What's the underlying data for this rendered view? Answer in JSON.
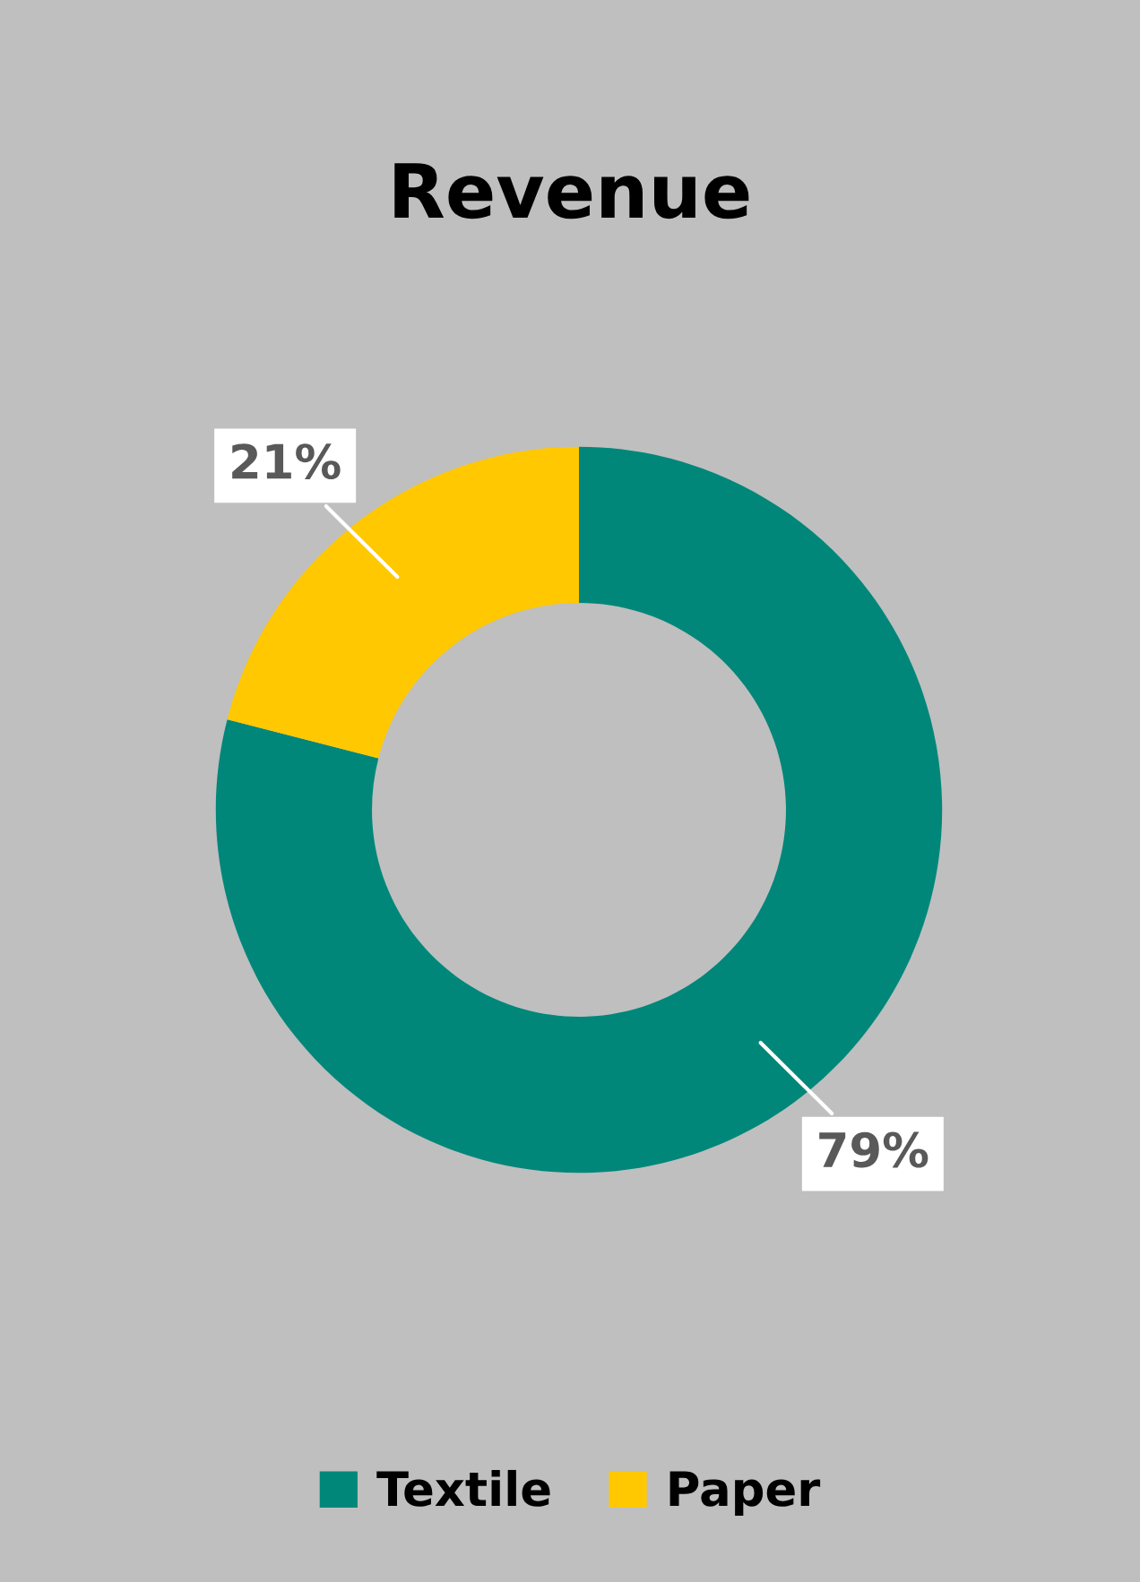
{
  "chart_data": {
    "type": "donut",
    "title": "Revenue",
    "categories": [
      "Textile",
      "Paper"
    ],
    "values": [
      79,
      21
    ],
    "colors": [
      "#00877a",
      "#ffc800"
    ],
    "value_labels": [
      "79%",
      "21%"
    ],
    "legend": "bottom"
  }
}
